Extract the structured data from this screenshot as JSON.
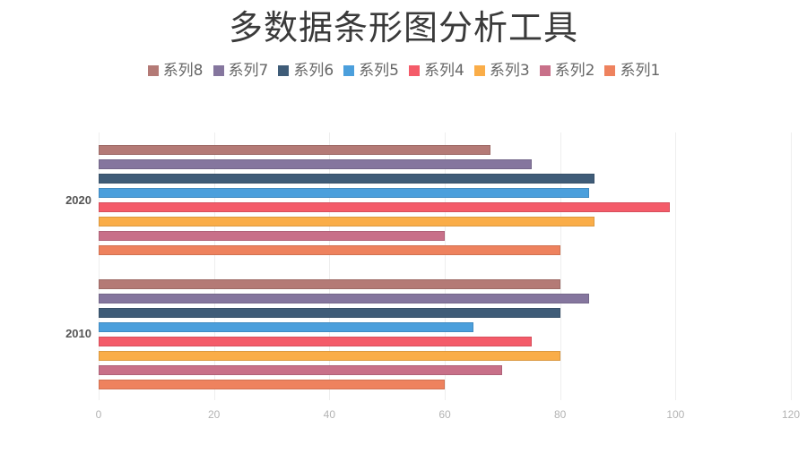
{
  "title": "多数据条形图分析工具",
  "legend": [
    {
      "name": "系列8",
      "color": "#B47A76"
    },
    {
      "name": "系列7",
      "color": "#85769E"
    },
    {
      "name": "系列6",
      "color": "#3F5C78"
    },
    {
      "name": "系列5",
      "color": "#4B9FDC"
    },
    {
      "name": "系列4",
      "color": "#F45B69"
    },
    {
      "name": "系列3",
      "color": "#FAAD48"
    },
    {
      "name": "系列2",
      "color": "#C87089"
    },
    {
      "name": "系列1",
      "color": "#EE825E"
    }
  ],
  "chart_data": {
    "type": "bar",
    "orientation": "horizontal",
    "title": "多数据条形图分析工具",
    "xlabel": "",
    "ylabel": "",
    "categories": [
      "2010",
      "2020"
    ],
    "xlim": [
      0,
      120
    ],
    "xticks": [
      0,
      20,
      40,
      60,
      80,
      100,
      120
    ],
    "grid": "vertical",
    "legend_position": "top",
    "series": [
      {
        "name": "系列1",
        "color": "#EE825E",
        "values": [
          60,
          80
        ]
      },
      {
        "name": "系列2",
        "color": "#C87089",
        "values": [
          70,
          60
        ]
      },
      {
        "name": "系列3",
        "color": "#FAAD48",
        "values": [
          80,
          86
        ]
      },
      {
        "name": "系列4",
        "color": "#F45B69",
        "values": [
          75,
          99
        ]
      },
      {
        "name": "系列5",
        "color": "#4B9FDC",
        "values": [
          65,
          85
        ]
      },
      {
        "name": "系列6",
        "color": "#3F5C78",
        "values": [
          80,
          86
        ]
      },
      {
        "name": "系列7",
        "color": "#85769E",
        "values": [
          85,
          75
        ]
      },
      {
        "name": "系列8",
        "color": "#B47A76",
        "values": [
          80,
          68
        ]
      }
    ]
  }
}
